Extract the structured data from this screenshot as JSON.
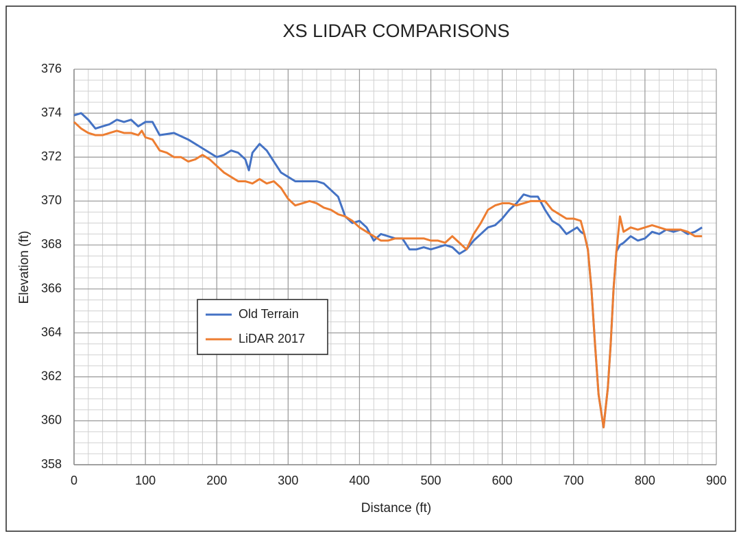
{
  "chart_data": {
    "type": "line",
    "title": "XS LIDAR COMPARISONS",
    "xlabel": "Distance (ft)",
    "ylabel": "Elevation (ft)",
    "xlim": [
      0,
      900
    ],
    "ylim": [
      358,
      376
    ],
    "xticks": [
      0,
      100,
      200,
      300,
      400,
      500,
      600,
      700,
      800,
      900
    ],
    "yticks": [
      358,
      360,
      362,
      364,
      366,
      368,
      370,
      372,
      374,
      376
    ],
    "grid": true,
    "minor_grid": {
      "x": 20,
      "y": 0.5
    },
    "legend": "center-left",
    "series": [
      {
        "name": "Old Terrain",
        "color": "#4472c4",
        "x": [
          0,
          10,
          20,
          30,
          40,
          50,
          60,
          70,
          80,
          90,
          100,
          110,
          120,
          140,
          160,
          180,
          200,
          210,
          220,
          230,
          240,
          245,
          250,
          260,
          270,
          280,
          290,
          300,
          310,
          320,
          330,
          340,
          350,
          360,
          370,
          380,
          390,
          400,
          410,
          420,
          430,
          440,
          450,
          460,
          470,
          480,
          490,
          500,
          510,
          520,
          530,
          540,
          550,
          560,
          570,
          580,
          590,
          600,
          610,
          620,
          630,
          640,
          650,
          660,
          670,
          680,
          690,
          700,
          705,
          710,
          715,
          720,
          725,
          730,
          735,
          742,
          748,
          752,
          756,
          760,
          765,
          770,
          780,
          790,
          800,
          810,
          820,
          830,
          840,
          850,
          860,
          870,
          880
        ],
        "values": [
          373.9,
          374.0,
          373.7,
          373.3,
          373.4,
          373.5,
          373.7,
          373.6,
          373.7,
          373.4,
          373.6,
          373.6,
          373.0,
          373.1,
          372.8,
          372.4,
          372.0,
          372.1,
          372.3,
          372.2,
          371.9,
          371.4,
          372.2,
          372.6,
          372.3,
          371.8,
          371.3,
          371.1,
          370.9,
          370.9,
          370.9,
          370.9,
          370.8,
          370.5,
          370.2,
          369.3,
          369.0,
          369.1,
          368.8,
          368.2,
          368.5,
          368.4,
          368.3,
          368.3,
          367.8,
          367.8,
          367.9,
          367.8,
          367.9,
          368.0,
          367.9,
          367.6,
          367.8,
          368.2,
          368.5,
          368.8,
          368.9,
          369.2,
          369.6,
          369.9,
          370.3,
          370.2,
          370.2,
          369.6,
          369.1,
          368.9,
          368.5,
          368.7,
          368.8,
          368.6,
          368.5,
          367.8,
          366.0,
          363.5,
          361.2,
          359.7,
          361.5,
          363.5,
          366.0,
          367.7,
          368.0,
          368.1,
          368.4,
          368.2,
          368.3,
          368.6,
          368.5,
          368.7,
          368.6,
          368.7,
          368.5,
          368.6,
          368.8
        ]
      },
      {
        "name": "LiDAR 2017",
        "color": "#ed7d31",
        "x": [
          0,
          10,
          20,
          30,
          40,
          50,
          60,
          70,
          80,
          90,
          95,
          100,
          110,
          120,
          130,
          140,
          150,
          160,
          170,
          180,
          190,
          200,
          210,
          220,
          230,
          240,
          250,
          260,
          270,
          280,
          290,
          300,
          310,
          320,
          330,
          340,
          350,
          360,
          370,
          380,
          390,
          400,
          410,
          420,
          430,
          440,
          450,
          460,
          470,
          480,
          490,
          500,
          510,
          520,
          530,
          540,
          550,
          560,
          570,
          580,
          590,
          600,
          610,
          620,
          630,
          640,
          650,
          660,
          670,
          680,
          690,
          700,
          710,
          715,
          720,
          725,
          730,
          735,
          742,
          748,
          752,
          756,
          760,
          765,
          770,
          780,
          790,
          800,
          810,
          820,
          830,
          840,
          850,
          860,
          870,
          880
        ],
        "values": [
          373.6,
          373.3,
          373.1,
          373.0,
          373.0,
          373.1,
          373.2,
          373.1,
          373.1,
          373.0,
          373.2,
          372.9,
          372.8,
          372.3,
          372.2,
          372.0,
          372.0,
          371.8,
          371.9,
          372.1,
          371.9,
          371.6,
          371.3,
          371.1,
          370.9,
          370.9,
          370.8,
          371.0,
          370.8,
          370.9,
          370.6,
          370.1,
          369.8,
          369.9,
          370.0,
          369.9,
          369.7,
          369.6,
          369.4,
          369.3,
          369.1,
          368.8,
          368.6,
          368.4,
          368.2,
          368.2,
          368.3,
          368.3,
          368.3,
          368.3,
          368.3,
          368.2,
          368.2,
          368.1,
          368.4,
          368.1,
          367.8,
          368.5,
          369.0,
          369.6,
          369.8,
          369.9,
          369.9,
          369.8,
          369.9,
          370.0,
          370.0,
          370.0,
          369.6,
          369.4,
          369.2,
          369.2,
          369.1,
          368.5,
          367.8,
          366.0,
          363.5,
          361.2,
          359.7,
          361.5,
          363.5,
          366.0,
          367.7,
          369.3,
          368.6,
          368.8,
          368.7,
          368.8,
          368.9,
          368.8,
          368.7,
          368.7,
          368.7,
          368.6,
          368.4,
          368.4
        ]
      }
    ]
  }
}
